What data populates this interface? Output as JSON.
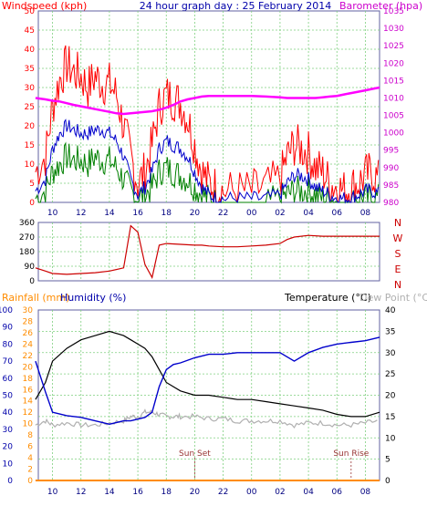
{
  "chart_data": [
    {
      "type": "line",
      "title": "24 hour graph day : 25 February 2014",
      "left_axis_label": "Windspeed (kph)",
      "right_axis_label": "Barometer (hpa)",
      "x_ticks": [
        "10",
        "12",
        "14",
        "16",
        "18",
        "20",
        "22",
        "00",
        "02",
        "04",
        "06",
        "08"
      ],
      "y_left_ticks": [
        "0",
        "5",
        "10",
        "15",
        "20",
        "25",
        "30",
        "35",
        "40",
        "45",
        "50"
      ],
      "y_left_range": [
        0,
        50
      ],
      "y_right_ticks": [
        "980",
        "985",
        "990",
        "995",
        "1000",
        "1005",
        "1010",
        "1015",
        "1020",
        "1025",
        "1030",
        "1035"
      ],
      "y_right_range": [
        980,
        1035
      ],
      "grid": true,
      "colors": {
        "gust": "#ff0000",
        "average": "#0000cc",
        "speed": "#008000",
        "barometer": "#ff00ff"
      },
      "series_points": {
        "x": [
          8.8,
          9.5,
          10.0,
          10.5,
          11.0,
          11.5,
          12.0,
          12.5,
          13.0,
          13.5,
          14.0,
          14.5,
          15.0,
          15.5,
          16.0,
          16.5,
          17.0,
          17.5,
          18.0,
          18.5,
          19.0,
          19.5,
          20.0,
          20.5,
          21.0,
          21.5,
          22.0,
          23.0,
          24.0,
          25.0,
          26.0,
          26.5,
          27.0,
          27.5,
          28.0,
          28.5,
          29.0,
          29.5,
          30.0,
          30.5,
          31.0,
          31.5,
          32.0,
          32.5,
          33.0
        ],
        "gust": [
          8,
          12,
          25,
          32,
          36,
          34,
          33,
          30,
          33,
          31,
          31,
          28,
          20,
          12,
          5,
          8,
          15,
          25,
          28,
          27,
          26,
          22,
          15,
          8,
          5,
          4,
          3,
          3,
          3,
          4,
          6,
          12,
          15,
          14,
          13,
          9,
          8,
          5,
          4,
          3,
          4,
          5,
          7,
          8,
          5
        ],
        "average": [
          3,
          6,
          14,
          18,
          20,
          19,
          18,
          18,
          19,
          19,
          18,
          16,
          12,
          6,
          2,
          4,
          8,
          14,
          16,
          15,
          14,
          12,
          8,
          4,
          2,
          1,
          1,
          1,
          1,
          1,
          2,
          5,
          7,
          7,
          6,
          4,
          3,
          2,
          1,
          1,
          1,
          2,
          3,
          3,
          2
        ],
        "speed": [
          1,
          3,
          8,
          10,
          12,
          11,
          11,
          10,
          12,
          11,
          11,
          9,
          6,
          3,
          1,
          2,
          4,
          8,
          9,
          8,
          7,
          6,
          4,
          2,
          1,
          0,
          0,
          0,
          0,
          0,
          1,
          2,
          3,
          3,
          3,
          2,
          1,
          1,
          0,
          0,
          0,
          1,
          1,
          1,
          1
        ],
        "barometer": [
          1010.0,
          1009.6,
          1009.2,
          1009.0,
          1008.5,
          1008.0,
          1007.6,
          1007.2,
          1006.8,
          1006.4,
          1006.0,
          1005.6,
          1005.4,
          1005.6,
          1005.8,
          1006.0,
          1006.2,
          1006.6,
          1007.2,
          1008.0,
          1009.0,
          1009.6,
          1010.0,
          1010.4,
          1010.6,
          1010.6,
          1010.6,
          1010.6,
          1010.6,
          1010.4,
          1010.2,
          1010.0,
          1010.0,
          1010.0,
          1010.0,
          1010.0,
          1010.2,
          1010.4,
          1010.6,
          1011.0,
          1011.4,
          1011.8,
          1012.2,
          1012.6,
          1013.0
        ]
      }
    },
    {
      "type": "line",
      "title": "",
      "y_left_ticks": [
        "0",
        "90",
        "180",
        "270",
        "360"
      ],
      "y_left_range": [
        0,
        360
      ],
      "right_labels": [
        "N",
        "W",
        "S",
        "E",
        "N"
      ],
      "color": "#cc0000",
      "series_points": {
        "x": [
          8.8,
          9.5,
          10.0,
          11.0,
          12.0,
          13.0,
          14.0,
          15.0,
          15.5,
          16.0,
          16.5,
          17.0,
          17.5,
          18.0,
          19.0,
          20.0,
          20.5,
          21.0,
          22.0,
          23.0,
          24.0,
          25.0,
          26.0,
          26.5,
          27.0,
          28.0,
          29.0,
          30.0,
          31.0,
          32.0,
          33.0
        ],
        "direction": [
          80,
          60,
          45,
          40,
          45,
          50,
          60,
          80,
          340,
          300,
          100,
          20,
          220,
          230,
          225,
          220,
          220,
          215,
          210,
          210,
          215,
          220,
          230,
          255,
          270,
          280,
          275,
          275,
          275,
          275,
          275
        ]
      }
    },
    {
      "type": "line",
      "title": "",
      "left_axis_label": "Rainfall (mm)",
      "left_axis_label_2": "Humidity (%)",
      "right_axis_label": "Temperature (°C)",
      "right_axis_label_2": "Dew Point (°C)",
      "annotations": [
        "Sun Set",
        "Sun Rise"
      ],
      "y_humidity_ticks": [
        "0",
        "10",
        "20",
        "30",
        "40",
        "50",
        "60",
        "70",
        "80",
        "90",
        "100"
      ],
      "y_rain_ticks": [
        "0",
        "2",
        "4",
        "6",
        "8",
        "10",
        "12",
        "14",
        "16",
        "18",
        "20",
        "22",
        "24",
        "26",
        "28",
        "30"
      ],
      "y_temp_ticks": [
        "0",
        "5",
        "10",
        "15",
        "20",
        "25",
        "30",
        "35",
        "40"
      ],
      "humidity_range": [
        0,
        100
      ],
      "rain_range": [
        0,
        30
      ],
      "temp_range": [
        0,
        40
      ],
      "colors": {
        "temperature": "#000000",
        "humidity": "#0000cc",
        "dewpoint": "#b0b0b0",
        "rainfall": "#ff8c00"
      },
      "series_points": {
        "x": [
          8.8,
          9.5,
          10.0,
          11.0,
          12.0,
          13.0,
          14.0,
          15.0,
          15.5,
          16.0,
          16.5,
          17.0,
          17.5,
          18.0,
          18.5,
          19.0,
          20.0,
          21.0,
          22.0,
          23.0,
          24.0,
          25.0,
          26.0,
          27.0,
          28.0,
          29.0,
          30.0,
          31.0,
          32.0,
          33.0
        ],
        "temperature": [
          19,
          23,
          28,
          31,
          33,
          34,
          35,
          34,
          33,
          32,
          31,
          29,
          26,
          23,
          22,
          21,
          20,
          20,
          19.5,
          19,
          19,
          18.5,
          18,
          17.5,
          17,
          16.5,
          15.5,
          15,
          15,
          16
        ],
        "humidity": [
          70,
          52,
          40,
          38,
          37,
          35,
          33,
          35,
          35,
          36,
          37,
          40,
          55,
          65,
          68,
          69,
          72,
          74,
          74,
          75,
          75,
          75,
          75,
          70,
          75,
          78,
          80,
          81,
          82,
          84
        ],
        "dewpoint": [
          13,
          14,
          13,
          13.5,
          13,
          13,
          13.5,
          14,
          15,
          15,
          16,
          16,
          15.5,
          15,
          15,
          15,
          15,
          14.5,
          14.5,
          14,
          14,
          14,
          14,
          13,
          13.5,
          13.5,
          13,
          13,
          13.5,
          14
        ],
        "rainfall": [
          0,
          0,
          0,
          0,
          0,
          0,
          0,
          0,
          0,
          0,
          0,
          0,
          0,
          0,
          0,
          0,
          0,
          0,
          0,
          0,
          0,
          0,
          0,
          0,
          0,
          0,
          0,
          0,
          0,
          0
        ]
      }
    }
  ]
}
